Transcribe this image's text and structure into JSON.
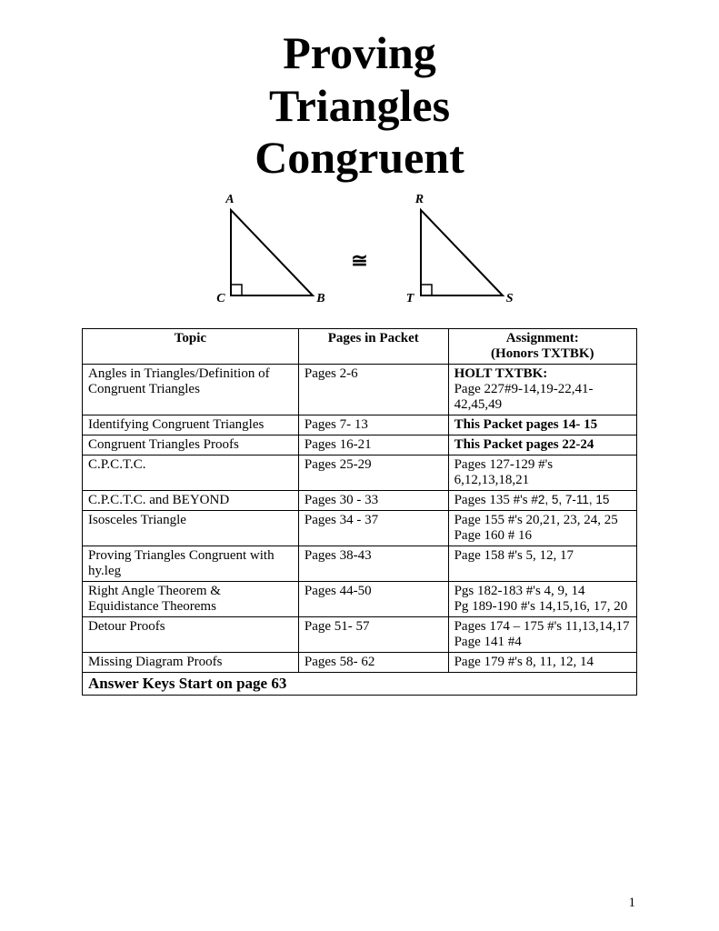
{
  "title": {
    "line1": "Proving",
    "line2": "Triangles",
    "line3": "Congruent"
  },
  "diagram": {
    "congruent_symbol": "≅",
    "left": {
      "top": "A",
      "bl": "C",
      "br": "B"
    },
    "right": {
      "top": "R",
      "bl": "T",
      "br": "S"
    },
    "stroke": "#000000",
    "stroke_width": 2
  },
  "table": {
    "headers": {
      "topic": "Topic",
      "pages": "Pages in Packet",
      "assign_l1": "Assignment:",
      "assign_l2": "(Honors TXTBK)"
    },
    "rows": [
      {
        "topic": "Angles in Triangles/Definition of Congruent Triangles",
        "pages": "Pages 2-6",
        "assign_bold": "HOLT TXTBK:",
        "assign_rest": "Page 227#9-14,19-22,41-42,45,49"
      },
      {
        "topic": "Identifying Congruent Triangles",
        "pages": "Pages 7- 13",
        "assign_bold_full": "This Packet  pages 14- 15"
      },
      {
        "topic": "Congruent Triangles Proofs",
        "pages": "Pages 16-21",
        "assign_bold_full": "This Packet  pages 22-24"
      },
      {
        "topic": "C.P.C.T.C.",
        "pages": "Pages 25-29",
        "assign_plain": "Pages 127-129 #'s 6,12,13,18,21"
      },
      {
        "topic": "C.P.C.T.C. and BEYOND",
        "pages": "Pages 30 - 33",
        "assign_mixed_pre": "Pages 135 #'s ",
        "assign_mixed_sans": "#2, 5, 7-11, 15"
      },
      {
        "topic": "Isosceles Triangle",
        "pages": "Pages 34 - 37",
        "assign_plain": "Page 155 #'s 20,21, 23, 24, 25\nPage 160 # 16"
      },
      {
        "topic": "Proving Triangles Congruent with hy.leg",
        "pages": "Pages 38-43",
        "assign_plain": "Page 158 #'s 5, 12, 17"
      },
      {
        "topic": "Right Angle Theorem & Equidistance Theorems",
        "pages": "Pages 44-50",
        "assign_plain": "Pgs 182-183 #'s 4, 9, 14\nPg 189-190 #'s 14,15,16, 17, 20"
      },
      {
        "topic": "Detour Proofs",
        "pages": "Page 51- 57",
        "assign_plain": "Pages 174 – 175  #'s 11,13,14,17\nPage 141 #4"
      },
      {
        "topic": "Missing Diagram Proofs",
        "pages": "Pages 58- 62",
        "assign_plain": "Page 179 #'s 8, 11, 12, 14"
      }
    ],
    "footer": "Answer Keys Start on page 63"
  },
  "page_number": "1"
}
